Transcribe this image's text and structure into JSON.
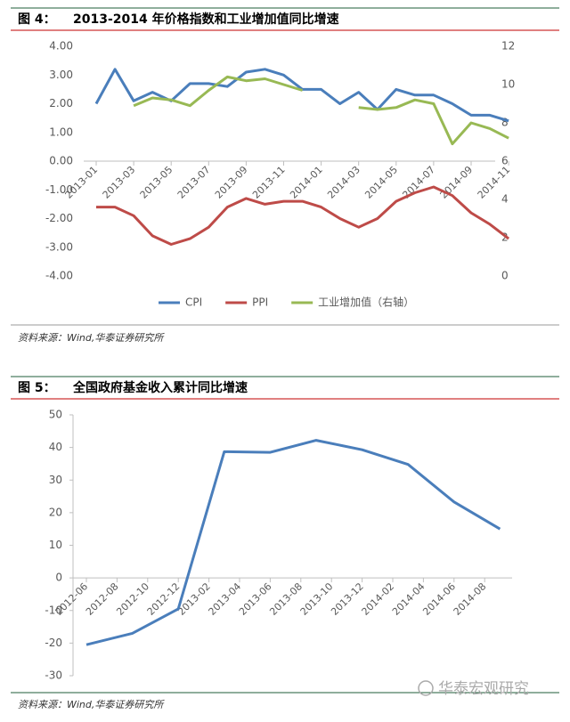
{
  "chart_data": [
    {
      "type": "line",
      "figure_label": "图 4：",
      "title": "2013-2014 年价格指数和工业增加值同比增速",
      "source": "资料来源：Wind,华泰证券研究所",
      "x": [
        "2013-01",
        "2013-02",
        "2013-03",
        "2013-04",
        "2013-05",
        "2013-06",
        "2013-07",
        "2013-08",
        "2013-09",
        "2013-10",
        "2013-11",
        "2013-12",
        "2014-01",
        "2014-02",
        "2014-03",
        "2014-04",
        "2014-05",
        "2014-06",
        "2014-07",
        "2014-08",
        "2014-09",
        "2014-10",
        "2014-11"
      ],
      "xticks": [
        "2013-01",
        "2013-03",
        "2013-05",
        "2013-07",
        "2013-09",
        "2013-11",
        "2014-01",
        "2014-03",
        "2014-05",
        "2014-07",
        "2014-09",
        "2014-11"
      ],
      "ylim": [
        -4,
        4
      ],
      "yticks": [
        {
          "value": 4,
          "label": "4.00"
        },
        {
          "value": 3,
          "label": "3.00"
        },
        {
          "value": 2,
          "label": "2.00"
        },
        {
          "value": 1,
          "label": "1.00"
        },
        {
          "value": 0,
          "label": "0.00"
        },
        {
          "value": -1,
          "label": "-1.00"
        },
        {
          "value": -2,
          "label": "-2.00"
        },
        {
          "value": -3,
          "label": "-3.00"
        },
        {
          "value": -4,
          "label": "-4.00"
        }
      ],
      "y2lim": [
        0,
        12
      ],
      "y2ticks": [
        0,
        2,
        4,
        6,
        8,
        10,
        12
      ],
      "legend": "bottom",
      "series": [
        {
          "name": "CPI",
          "color": "#4a7ebb",
          "values": [
            2.0,
            3.2,
            2.1,
            2.4,
            2.1,
            2.7,
            2.7,
            2.6,
            3.1,
            3.2,
            3.0,
            2.5,
            2.5,
            2.0,
            2.4,
            1.8,
            2.5,
            2.3,
            2.3,
            2.0,
            1.6,
            1.6,
            1.4
          ]
        },
        {
          "name": "PPI",
          "color": "#be4b48",
          "values": [
            -1.6,
            -1.6,
            -1.9,
            -2.6,
            -2.9,
            -2.7,
            -2.3,
            -1.6,
            -1.3,
            -1.5,
            -1.4,
            -1.4,
            -1.6,
            -2.0,
            -2.3,
            -2.0,
            -1.4,
            -1.1,
            -0.9,
            -1.2,
            -1.8,
            -2.2,
            -2.7
          ]
        },
        {
          "name": "工业增加值（右轴）",
          "color": "#98b954",
          "axis": "y2",
          "values": [
            null,
            null,
            8.9,
            9.3,
            9.2,
            8.9,
            9.7,
            10.4,
            10.2,
            10.3,
            10.0,
            9.7,
            null,
            null,
            8.8,
            8.7,
            8.8,
            9.2,
            9.0,
            6.9,
            8.0,
            7.7,
            7.2
          ]
        }
      ]
    },
    {
      "type": "line",
      "figure_label": "图 5：",
      "title": "全国政府基金收入累计同比增速",
      "source": "资料来源：Wind,华泰证券研究所",
      "x": [
        "2012-06",
        "2012-09",
        "2012-12",
        "2013-03",
        "2013-06",
        "2013-09",
        "2013-12",
        "2014-03",
        "2014-06",
        "2014-09"
      ],
      "xticks": [
        "2012-06",
        "2012-08",
        "2012-10",
        "2012-12",
        "2013-02",
        "2013-04",
        "2013-06",
        "2013-08",
        "2013-10",
        "2013-12",
        "2014-02",
        "2014-04",
        "2014-06",
        "2014-08"
      ],
      "ylim": [
        -30,
        50
      ],
      "yticks": [
        50,
        40,
        30,
        20,
        10,
        0,
        -10,
        -20,
        -30
      ],
      "series": [
        {
          "color": "#4a7ebb",
          "values": [
            -20.5,
            -17,
            -9.5,
            38.7,
            38.5,
            42.2,
            39.3,
            34.8,
            23.3,
            15
          ]
        }
      ]
    }
  ],
  "watermark": "华泰宏观研究"
}
